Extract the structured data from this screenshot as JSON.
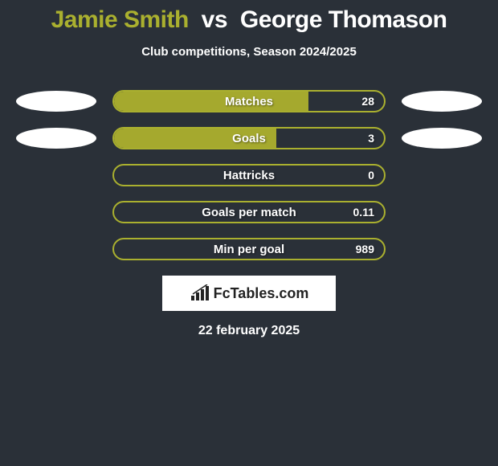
{
  "title": {
    "player1": "Jamie Smith",
    "vs": "vs",
    "player2": "George Thomason",
    "player1_color": "#aab02f",
    "vs_color": "#ffffff",
    "player2_color": "#ffffff",
    "fontsize": 30
  },
  "subtitle": "Club competitions, Season 2024/2025",
  "subtitle_color": "#ffffff",
  "background_color": "#2a3038",
  "bar_border_color": "#aab02f",
  "bar_fill_color": "#a5a92e",
  "ellipse_color": "#ffffff",
  "stats": [
    {
      "label": "Matches",
      "value": "28",
      "fill_pct": 72,
      "left_ellipse": true,
      "right_ellipse": true
    },
    {
      "label": "Goals",
      "value": "3",
      "fill_pct": 60,
      "left_ellipse": true,
      "right_ellipse": true
    },
    {
      "label": "Hattricks",
      "value": "0",
      "fill_pct": 0,
      "left_ellipse": false,
      "right_ellipse": false
    },
    {
      "label": "Goals per match",
      "value": "0.11",
      "fill_pct": 0,
      "left_ellipse": false,
      "right_ellipse": false
    },
    {
      "label": "Min per goal",
      "value": "989",
      "fill_pct": 0,
      "left_ellipse": false,
      "right_ellipse": false
    }
  ],
  "logo_text": "FcTables.com",
  "date": "22 february 2025"
}
